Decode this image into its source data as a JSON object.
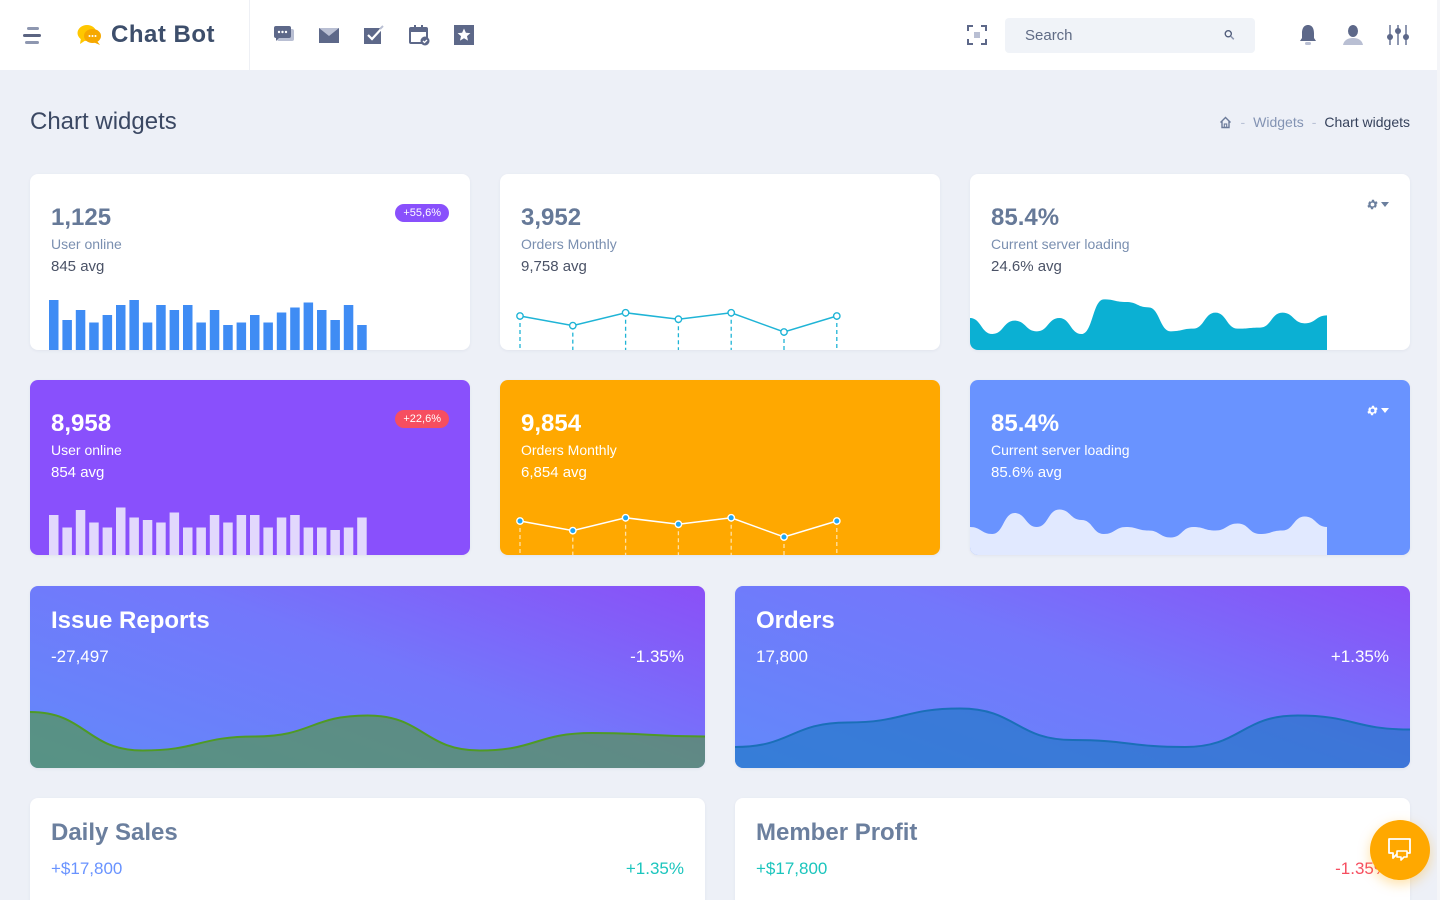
{
  "header": {
    "brand": "Chat Bot",
    "nav_icons": [
      "chat-bubbles-icon",
      "mail-icon",
      "checkbox-icon",
      "calendar-check-icon",
      "star-icon"
    ],
    "search_placeholder": "Search",
    "right_icons": [
      "bell-icon",
      "user-icon",
      "sliders-icon"
    ]
  },
  "page": {
    "title": "Chart widgets",
    "breadcrumb": [
      "Widgets",
      "Chart widgets"
    ]
  },
  "widgets": {
    "users_white": {
      "value": "1,125",
      "label": "User online",
      "avg": "845 avg",
      "badge": "+55,6%",
      "badge_color": "#8950fc"
    },
    "orders_white": {
      "value": "3,952",
      "label": "Orders Monthly",
      "avg": "9,758 avg"
    },
    "server_white": {
      "value": "85.4%",
      "label": "Current server loading",
      "avg": "24.6% avg"
    },
    "users_purple": {
      "value": "8,958",
      "label": "User online",
      "avg": "854 avg",
      "badge": "+22,6%",
      "badge_color": "#f64e60",
      "bg": "#8950fc"
    },
    "orders_orange": {
      "value": "9,854",
      "label": "Orders Monthly",
      "avg": "6,854 avg",
      "bg": "#ffa800"
    },
    "server_blue": {
      "value": "85.4%",
      "label": "Current server loading",
      "avg": "85.6% avg",
      "bg": "#6993ff"
    }
  },
  "big_cards": {
    "issue_reports": {
      "title": "Issue Reports",
      "number": "-27,497",
      "percent": "-1.35%"
    },
    "orders": {
      "title": "Orders",
      "number": "17,800",
      "percent": "+1.35%"
    },
    "daily_sales": {
      "title": "Daily Sales",
      "number": "+$17,800",
      "percent": "+1.35%",
      "number_color": "#6993ff",
      "percent_color": "#1bc5bd"
    },
    "member_profit": {
      "title": "Member Profit",
      "number": "+$17,800",
      "percent": "-1.35%",
      "number_color": "#1bc5bd",
      "percent_color": "#f64e60"
    }
  },
  "chart_data": [
    {
      "type": "bar",
      "name": "users-white-bars",
      "values": [
        10,
        6,
        8,
        5.5,
        7,
        9,
        10,
        5.5,
        9,
        8,
        9,
        5.5,
        8,
        5,
        5.5,
        7,
        5.5,
        7.5,
        8.5,
        9.5,
        8,
        6,
        9,
        5
      ],
      "color": "#3f8cf4"
    },
    {
      "type": "line",
      "name": "orders-white-line",
      "values": [
        7.5,
        6,
        8,
        7,
        8,
        5,
        7.5
      ],
      "color": "#1fb4d6"
    },
    {
      "type": "area",
      "name": "server-white-area",
      "values": [
        6,
        3,
        5.5,
        3.5,
        6,
        3,
        9.5,
        9,
        8,
        3.5,
        4,
        7,
        4,
        4.2,
        7,
        5,
        6.5
      ],
      "color": "#0bb0d3"
    },
    {
      "type": "bar",
      "name": "users-purple-bars",
      "values": [
        8,
        5.5,
        9,
        6.5,
        5.5,
        9.5,
        7.5,
        7,
        6.5,
        8.5,
        5.5,
        5.5,
        8,
        6.5,
        8,
        8,
        5.5,
        7.5,
        8,
        5.5,
        5.5,
        5,
        5.5,
        7.5
      ],
      "color": "#e2d8fd"
    },
    {
      "type": "line",
      "name": "orders-orange-line",
      "values": [
        7.5,
        6,
        8,
        7,
        8,
        5,
        7.5
      ],
      "color": "#ffffff"
    },
    {
      "type": "area",
      "name": "server-blue-area",
      "values": [
        4,
        3,
        6,
        4,
        6.5,
        5,
        3,
        4,
        3.5,
        2.5,
        4,
        3.5,
        4.5,
        3,
        3.5,
        5.5,
        4
      ],
      "color": "#e1e9ff"
    },
    {
      "type": "area",
      "name": "issue-reports-area",
      "values": [
        8,
        2.5,
        4.5,
        7.5,
        2.5,
        5,
        4.5
      ],
      "color": "#4f9a25"
    },
    {
      "type": "area",
      "name": "orders-area",
      "values": [
        3,
        6.5,
        8.5,
        4,
        3,
        7.5,
        5.5
      ],
      "color": "#1976c2"
    }
  ]
}
